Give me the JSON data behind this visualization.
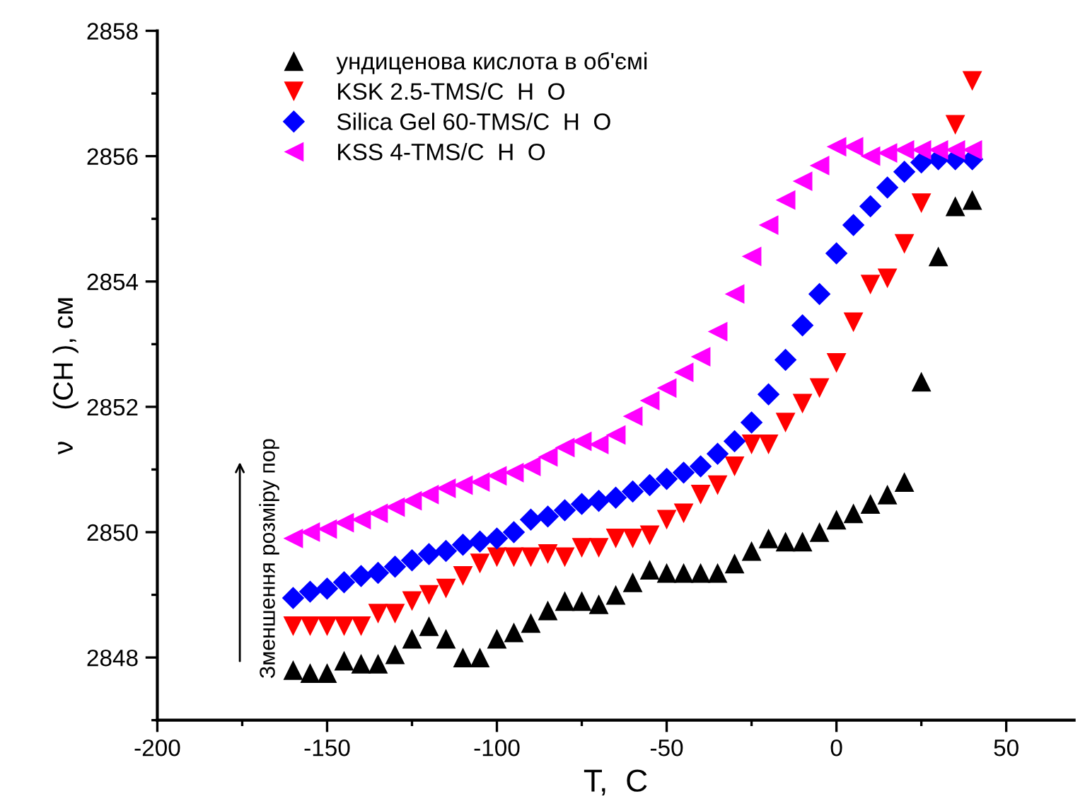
{
  "chart_data": {
    "type": "scatter",
    "xlabel": "T,  C",
    "ylabel": "ν    (CH ), см",
    "x": [
      -160,
      -155,
      -150,
      -145,
      -140,
      -135,
      -130,
      -125,
      -120,
      -115,
      -110,
      -105,
      -100,
      -95,
      -90,
      -85,
      -80,
      -75,
      -70,
      -65,
      -60,
      -55,
      -50,
      -45,
      -40,
      -35,
      -30,
      -25,
      -20,
      -15,
      -10,
      -5,
      0,
      5,
      10,
      15,
      20,
      25,
      30,
      35,
      40
    ],
    "series": [
      {
        "name": "ундиценова кислота в об'ємі",
        "color": "#000000",
        "marker": "triangle",
        "values": [
          2847.8,
          2847.75,
          2847.75,
          2847.95,
          2847.9,
          2847.9,
          2848.05,
          2848.3,
          2848.5,
          2848.3,
          2848.0,
          2848.0,
          2848.3,
          2848.4,
          2848.55,
          2848.75,
          2848.9,
          2848.9,
          2848.85,
          2849.0,
          2849.2,
          2849.4,
          2849.35,
          2849.35,
          2849.35,
          2849.35,
          2849.5,
          2849.7,
          2849.9,
          2849.85,
          2849.85,
          2850.0,
          2850.2,
          2850.3,
          2850.45,
          2850.6,
          2850.8,
          2852.4,
          2854.4,
          2855.2,
          2855.3
        ]
      },
      {
        "name": "KSK 2.5-TMS/C  H  O",
        "color": "#ff0000",
        "marker": "triangle down",
        "values": [
          2848.5,
          2848.5,
          2848.5,
          2848.5,
          2848.5,
          2848.7,
          2848.7,
          2848.9,
          2849.0,
          2849.1,
          2849.3,
          2849.5,
          2849.6,
          2849.6,
          2849.6,
          2849.65,
          2849.6,
          2849.75,
          2849.75,
          2849.9,
          2849.9,
          2849.95,
          2850.2,
          2850.3,
          2850.6,
          2850.75,
          2851.05,
          2851.4,
          2851.4,
          2851.75,
          2852.05,
          2852.3,
          2852.7,
          2853.35,
          2853.95,
          2854.05,
          2854.6,
          2855.25,
          null,
          2856.5,
          2857.2
        ]
      },
      {
        "name": "Silica Gel 60-TMS/C  H  O",
        "color": "#0000ff",
        "marker": "diamond",
        "values": [
          2848.95,
          2849.05,
          2849.1,
          2849.2,
          2849.3,
          2849.35,
          2849.45,
          2849.55,
          2849.65,
          2849.7,
          2849.8,
          2849.85,
          2849.9,
          2850.0,
          2850.2,
          2850.25,
          2850.35,
          2850.45,
          2850.5,
          2850.55,
          2850.65,
          2850.75,
          2850.85,
          2850.95,
          2851.05,
          2851.25,
          2851.45,
          2851.75,
          2852.2,
          2852.75,
          2853.3,
          2853.8,
          2854.45,
          2854.9,
          2855.2,
          2855.5,
          2855.75,
          2855.9,
          2855.95,
          2855.95,
          2855.95
        ]
      },
      {
        "name": "KSS 4-TMS/C  H  O",
        "color": "#ff00ff",
        "marker": "triangle left",
        "values": [
          2849.9,
          2850.0,
          2850.05,
          2850.15,
          2850.2,
          2850.3,
          2850.4,
          2850.5,
          2850.6,
          2850.7,
          2850.75,
          2850.8,
          2850.9,
          2850.95,
          2851.05,
          2851.2,
          2851.35,
          2851.45,
          2851.4,
          2851.55,
          2851.85,
          2852.1,
          2852.3,
          2852.55,
          2852.8,
          2853.2,
          2853.8,
          2854.4,
          2854.9,
          2855.3,
          2855.6,
          2855.85,
          2856.15,
          2856.15,
          2856.0,
          2856.05,
          2856.1,
          2856.1,
          2856.1,
          2856.1,
          2856.1
        ]
      }
    ],
    "xlim": [
      -200,
      70
    ],
    "xticks": [
      -200,
      {
        "value": -175,
        "label": null
      },
      -150,
      {
        "value": -125,
        "label": null
      },
      -100,
      {
        "value": -75,
        "label": null
      },
      -50,
      {
        "value": -25,
        "label": null
      },
      0,
      {
        "value": 25,
        "label": null
      },
      50
    ],
    "ylim": [
      2847,
      2858
    ],
    "yticks": [
      {
        "value": 2847,
        "label": null
      },
      2848,
      {
        "value": 2849,
        "label": null
      },
      2850,
      {
        "value": 2851,
        "label": null
      },
      2852,
      {
        "value": 2853,
        "label": null
      },
      2854,
      {
        "value": 2855,
        "label": null
      },
      2856,
      {
        "value": 2857,
        "label": null
      },
      2858
    ],
    "grid": false,
    "legend": "top left",
    "annotations": [
      "Зменшення розміру пор"
    ]
  }
}
